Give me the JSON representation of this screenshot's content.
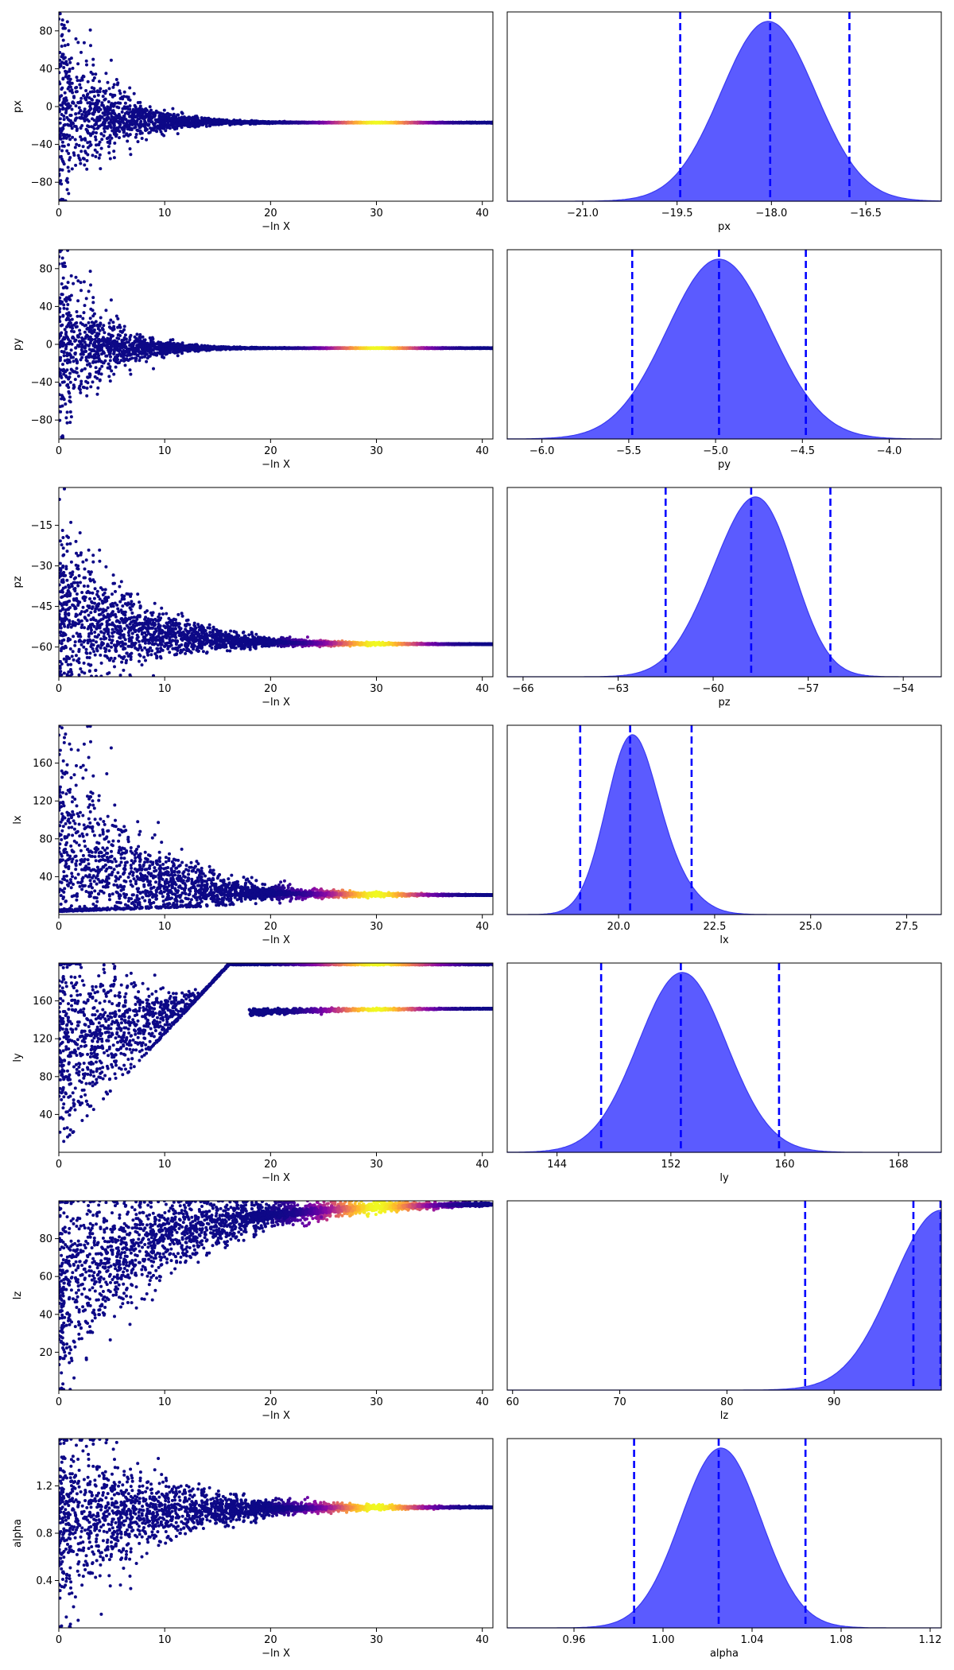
{
  "chart_data": [
    {
      "type": "scatter",
      "ylabel": "px",
      "xlabel": "−ln X",
      "xlim": [
        0,
        41
      ],
      "ylim": [
        -100,
        100
      ],
      "x_ticks": [
        0,
        10,
        20,
        30,
        40
      ],
      "y_ticks": [
        -80,
        -40,
        0,
        40,
        80
      ],
      "y_tick_labels": [
        "−80",
        "−40",
        "0",
        "40",
        "80"
      ],
      "trace": {
        "center_start": 0,
        "center_end": -17,
        "spread_start": 100,
        "decay": 4.2,
        "upper_cut": 100,
        "upper_slope": 0,
        "lower_cut": -100,
        "lower_slope": 0,
        "hot_min": 0.05
      }
    },
    {
      "type": "area",
      "xlabel": "px",
      "xlim": [
        -22.2,
        -15.3
      ],
      "x_ticks": [
        -21,
        -19.5,
        -18,
        -16.5
      ],
      "x_tick_labels": [
        "−21.0",
        "−19.5",
        "−18.0",
        "−16.5"
      ],
      "density_components": [
        {
          "mean": -18.05,
          "sd": 0.75,
          "weight": 1.0
        }
      ],
      "quantile_lines": [
        -19.45,
        -18.02,
        -16.76
      ]
    },
    {
      "type": "scatter",
      "ylabel": "py",
      "xlabel": "−ln X",
      "xlim": [
        0,
        41
      ],
      "ylim": [
        -100,
        100
      ],
      "x_ticks": [
        0,
        10,
        20,
        30,
        40
      ],
      "y_ticks": [
        -80,
        -40,
        0,
        40,
        80
      ],
      "y_tick_labels": [
        "−80",
        "−40",
        "0",
        "40",
        "80"
      ],
      "trace": {
        "center_start": 0,
        "center_end": -4,
        "spread_start": 100,
        "decay": 3.6,
        "upper_cut": 100,
        "upper_slope": 0,
        "lower_cut": -100,
        "lower_slope": 0,
        "hot_min": 0.05
      }
    },
    {
      "type": "area",
      "xlabel": "py",
      "xlim": [
        -6.2,
        -3.7
      ],
      "x_ticks": [
        -6,
        -5.5,
        -5,
        -4.5,
        -4
      ],
      "x_tick_labels": [
        "−6.0",
        "−5.5",
        "−5.0",
        "−4.5",
        "−4.0"
      ],
      "density_components": [
        {
          "mean": -4.98,
          "sd": 0.3,
          "weight": 1.0
        }
      ],
      "quantile_lines": [
        -5.48,
        -4.98,
        -4.48
      ]
    },
    {
      "type": "scatter",
      "ylabel": "pz",
      "xlabel": "−ln X",
      "xlim": [
        0,
        41
      ],
      "ylim": [
        -71,
        -1
      ],
      "x_ticks": [
        0,
        10,
        20,
        30,
        40
      ],
      "y_ticks": [
        -60,
        -45,
        -30,
        -15
      ],
      "y_tick_labels": [
        "−60",
        "−45",
        "−30",
        "−15"
      ],
      "trace": {
        "center_start": -45,
        "center_end": -59,
        "spread_start": 30,
        "decay": 7,
        "upper_cut": -1,
        "upper_slope": 0,
        "lower_cut": -71,
        "lower_slope": 0,
        "hot_min": 0.8
      }
    },
    {
      "type": "area",
      "xlabel": "pz",
      "xlim": [
        -66.5,
        -52.8
      ],
      "x_ticks": [
        -66,
        -63,
        -60,
        -57,
        -54
      ],
      "x_tick_labels": [
        "−66",
        "−63",
        "−60",
        "−57",
        "−54"
      ],
      "density_components": [
        {
          "mean": -59.3,
          "sd": 1.2,
          "weight": 0.6
        },
        {
          "mean": -58.2,
          "sd": 1.0,
          "weight": 0.55
        }
      ],
      "quantile_lines": [
        -61.5,
        -58.8,
        -56.3
      ]
    },
    {
      "type": "scatter",
      "ylabel": "lx",
      "xlabel": "−ln X",
      "xlim": [
        0,
        41
      ],
      "ylim": [
        0,
        200
      ],
      "x_ticks": [
        0,
        10,
        20,
        30,
        40
      ],
      "y_ticks": [
        40,
        80,
        120,
        160
      ],
      "y_tick_labels": [
        "40",
        "80",
        "120",
        "160"
      ],
      "trace": {
        "center_start": 60,
        "center_end": 20.5,
        "spread_start": 140,
        "decay": 7,
        "upper_cut": 200,
        "upper_slope": 0,
        "lower_cut": 3,
        "lower_slope": 0.4,
        "hot_min": 0.8
      }
    },
    {
      "type": "area",
      "xlabel": "lx",
      "xlim": [
        17.1,
        28.4
      ],
      "x_ticks": [
        20,
        22.5,
        25,
        27.5
      ],
      "x_tick_labels": [
        "20.0",
        "22.5",
        "25.0",
        "27.5"
      ],
      "density_components": [
        {
          "mean": 20.3,
          "sd": 0.65,
          "weight": 1.0
        },
        {
          "mean": 21.3,
          "sd": 0.7,
          "weight": 0.18
        }
      ],
      "quantile_lines": [
        19.0,
        20.3,
        21.9
      ]
    },
    {
      "type": "scatter",
      "ylabel": "ly",
      "xlabel": "−ln X",
      "xlim": [
        0,
        41
      ],
      "ylim": [
        0,
        200
      ],
      "x_ticks": [
        0,
        10,
        20,
        30,
        40
      ],
      "y_ticks": [
        40,
        80,
        120,
        160
      ],
      "y_tick_labels": [
        "40",
        "80",
        "120",
        "160"
      ],
      "trace": {
        "center_start": 110,
        "center_end": 152,
        "spread_start": 110,
        "decay": 8,
        "upper_cut": 200,
        "upper_slope": 0,
        "lower_cut": 5,
        "lower_slope": 12,
        "hot_min": 0.65
      }
    },
    {
      "type": "area",
      "xlabel": "ly",
      "xlim": [
        140.5,
        171
      ],
      "x_ticks": [
        144,
        152,
        160,
        168
      ],
      "x_tick_labels": [
        "144",
        "152",
        "160",
        "168"
      ],
      "density_components": [
        {
          "mean": 152.8,
          "sd": 3.1,
          "weight": 1.0
        }
      ],
      "quantile_lines": [
        147.1,
        152.7,
        159.6
      ]
    },
    {
      "type": "scatter",
      "ylabel": "lz",
      "xlabel": "−ln X",
      "xlim": [
        0,
        41
      ],
      "ylim": [
        0,
        100
      ],
      "x_ticks": [
        0,
        10,
        20,
        30,
        40
      ],
      "y_ticks": [
        20,
        40,
        60,
        80
      ],
      "y_tick_labels": [
        "20",
        "40",
        "60",
        "80"
      ],
      "trace": {
        "center_start": 50,
        "center_end": 99,
        "spread_start": 50,
        "decay": 10,
        "upper_cut": 100,
        "upper_slope": 0,
        "lower_cut": 0,
        "lower_slope": 0,
        "hot_min": 0.9
      }
    },
    {
      "type": "area",
      "xlabel": "lz",
      "xlim": [
        59.5,
        100
      ],
      "x_ticks": [
        60,
        70,
        80,
        90
      ],
      "x_tick_labels": [
        "60",
        "70",
        "80",
        "90"
      ],
      "density_components": [
        {
          "mean": 100,
          "sd": 4.5,
          "weight": 1.0
        }
      ],
      "quantile_lines": [
        87.3,
        97.4,
        100
      ]
    },
    {
      "type": "scatter",
      "ylabel": "alpha",
      "xlabel": "−ln X",
      "xlim": [
        0,
        41
      ],
      "ylim": [
        0,
        1.6
      ],
      "x_ticks": [
        0,
        10,
        20,
        30,
        40
      ],
      "y_ticks": [
        0.4,
        0.8,
        1.2
      ],
      "y_tick_labels": [
        "0.4",
        "0.8",
        "1.2"
      ],
      "trace": {
        "center_start": 0.9,
        "center_end": 1.02,
        "spread_start": 0.8,
        "decay": 8,
        "upper_cut": 1.6,
        "upper_slope": 0,
        "lower_cut": 0,
        "lower_slope": 0,
        "hot_min": 0.65
      }
    },
    {
      "type": "area",
      "xlabel": "alpha",
      "xlim": [
        0.93,
        1.125
      ],
      "x_ticks": [
        0.96,
        1.0,
        1.04,
        1.08,
        1.12
      ],
      "x_tick_labels": [
        "0.96",
        "1.00",
        "1.04",
        "1.08",
        "1.12"
      ],
      "density_components": [
        {
          "mean": 1.026,
          "sd": 0.018,
          "weight": 1.0
        }
      ],
      "quantile_lines": [
        0.987,
        1.025,
        1.064
      ]
    }
  ],
  "colors": {
    "density_fill": "#5b5bff",
    "density_edge": "#3a3af2",
    "quantile_line": "#0000ff",
    "trace_cold": "#0d0887",
    "colormap": "plasma"
  }
}
